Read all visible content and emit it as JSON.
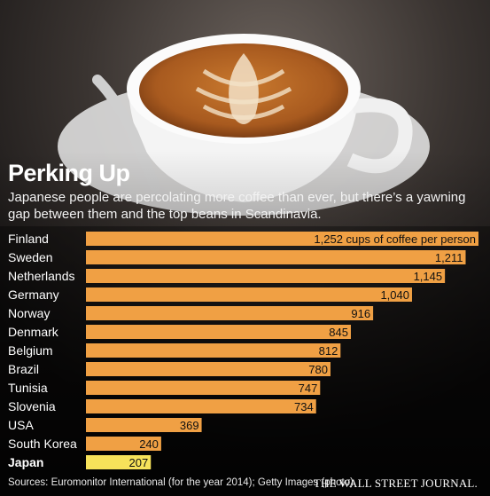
{
  "header": {
    "title": "Perking Up",
    "subtitle": "Japanese people are percolating more coffee than ever, but there’s a yawning gap between them and the top beans in Scandinavia."
  },
  "footer": {
    "source": "Sources: Euromonitor International (for the year 2014); Getty Images (photo)",
    "publisher": "THE WALL STREET JOURNAL."
  },
  "colors": {
    "bar": "#f0a044",
    "highlight_bar": "#f7e25a",
    "background": "#111111"
  },
  "chart_data": {
    "type": "bar",
    "orientation": "horizontal",
    "title": "Perking Up",
    "categories": [
      "Finland",
      "Sweden",
      "Netherlands",
      "Germany",
      "Norway",
      "Denmark",
      "Belgium",
      "Brazil",
      "Tunisia",
      "Slovenia",
      "USA",
      "South Korea",
      "Japan"
    ],
    "values": [
      1252,
      1211,
      1145,
      1040,
      916,
      845,
      812,
      780,
      747,
      734,
      369,
      240,
      207
    ],
    "data_labels": [
      "1,252 cups of coffee per person",
      "1,211",
      "1,145",
      "1,040",
      "916",
      "845",
      "812",
      "780",
      "747",
      "734",
      "369",
      "240",
      "207"
    ],
    "highlight": "Japan",
    "xlim": [
      0,
      1252
    ],
    "grid": false,
    "legend": "none"
  }
}
